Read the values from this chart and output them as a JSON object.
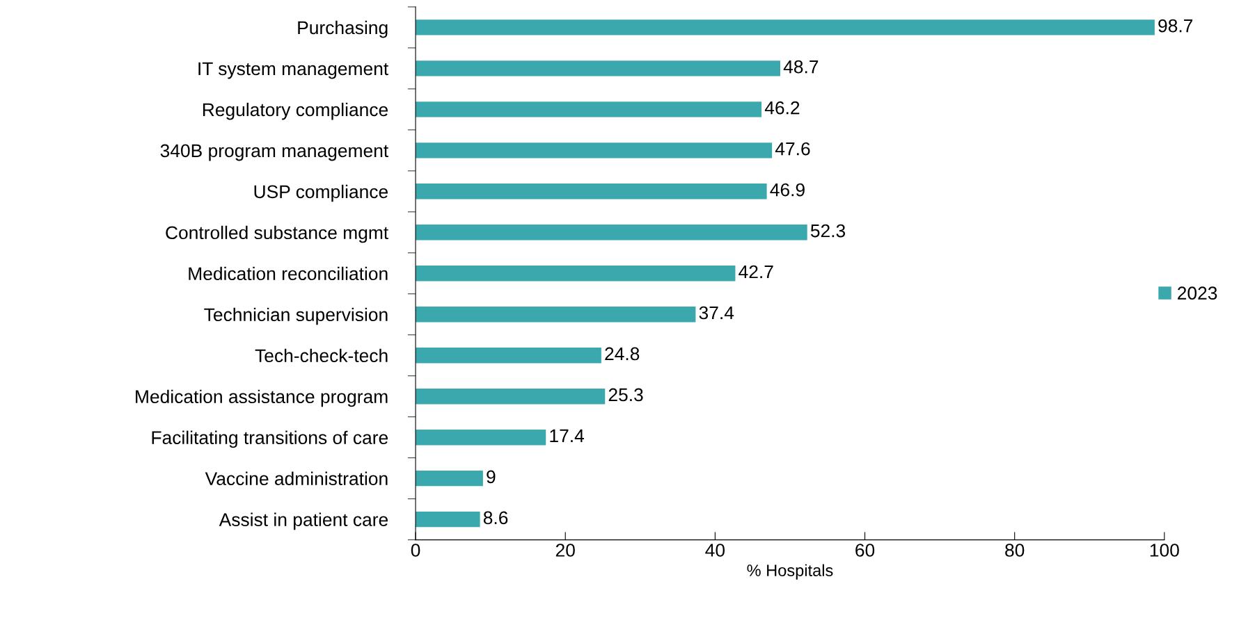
{
  "chart_data": {
    "type": "bar",
    "orientation": "horizontal",
    "xlabel": "% Hospitals",
    "categories": [
      "Purchasing",
      "IT system management",
      "Regulatory compliance",
      "340B program management",
      "USP compliance",
      "Controlled substance mgmt",
      "Medication reconciliation",
      "Technician supervision",
      "Tech-check-tech",
      "Medication assistance program",
      "Facilitating transitions of care",
      "Vaccine administration",
      "Assist in patient care"
    ],
    "series": [
      {
        "name": "2023",
        "color": "#3aa8ad",
        "values": [
          98.7,
          48.7,
          46.2,
          47.6,
          46.9,
          52.3,
          42.7,
          37.4,
          24.8,
          25.3,
          17.4,
          9,
          8.6
        ]
      }
    ],
    "xlim": [
      0,
      100
    ],
    "xticks": [
      0,
      20,
      40,
      60,
      80,
      100
    ],
    "data_labels": true,
    "legend": "right",
    "grid": false
  }
}
